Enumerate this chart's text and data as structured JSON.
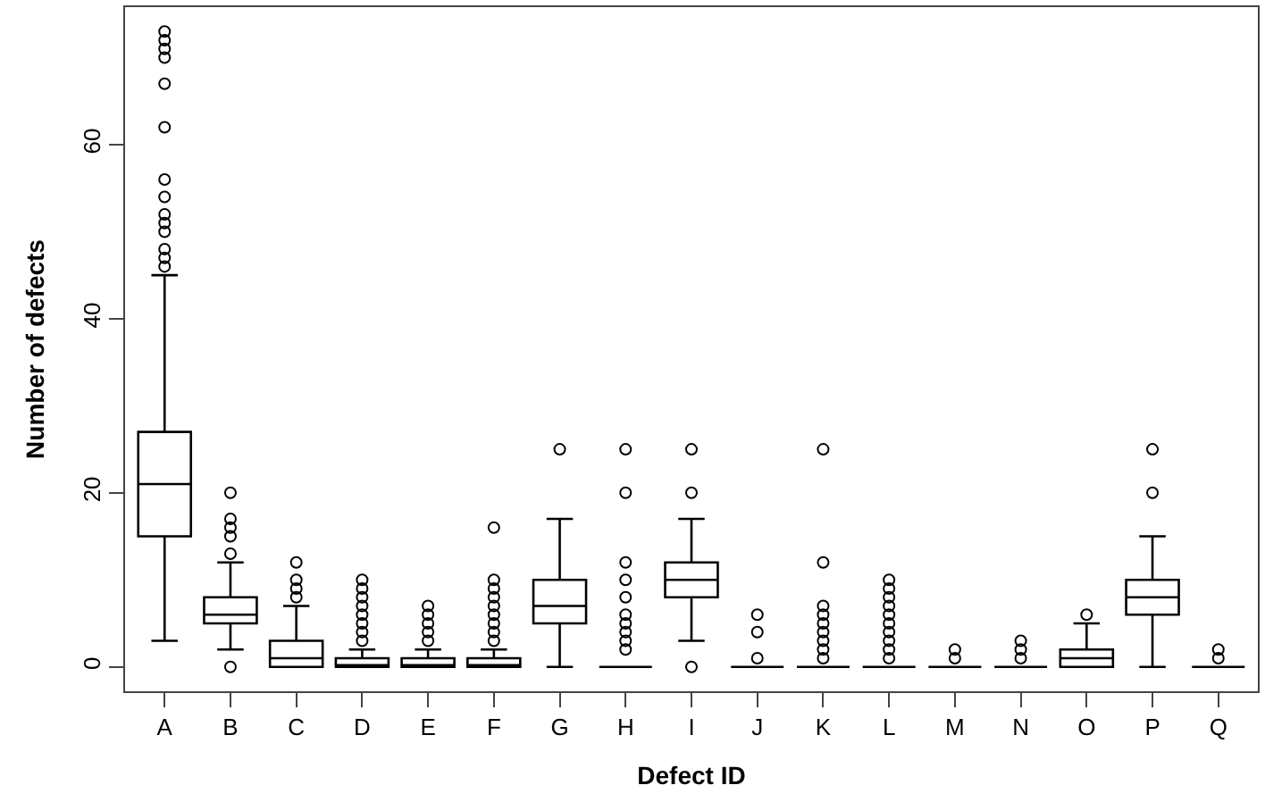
{
  "chart_data": {
    "type": "box",
    "xlabel": "Defect ID",
    "ylabel": "Number of defects",
    "categories": [
      "A",
      "B",
      "C",
      "D",
      "E",
      "F",
      "G",
      "H",
      "I",
      "J",
      "K",
      "L",
      "M",
      "N",
      "O",
      "P",
      "Q"
    ],
    "ylim": [
      -2.8,
      75.8
    ],
    "yticks": [
      0,
      20,
      40,
      60
    ],
    "marker": "circle",
    "boxes": [
      {
        "low": 3,
        "q1": 15,
        "median": 21,
        "q3": 27,
        "high": 45,
        "outliers": [
          46,
          47,
          48,
          50,
          51,
          52,
          54,
          56,
          62,
          67,
          70,
          71,
          72,
          73
        ]
      },
      {
        "low": 2,
        "q1": 5,
        "median": 6,
        "q3": 8,
        "high": 12,
        "outliers": [
          0,
          13,
          15,
          16,
          17,
          20
        ]
      },
      {
        "low": 0,
        "q1": 0,
        "median": 1,
        "q3": 3,
        "high": 7,
        "outliers": [
          8,
          9,
          10,
          12
        ]
      },
      {
        "low": 0,
        "q1": 0,
        "median": 0,
        "q3": 1,
        "high": 2,
        "outliers": [
          3,
          4,
          5,
          6,
          7,
          8,
          9,
          10
        ]
      },
      {
        "low": 0,
        "q1": 0,
        "median": 0,
        "q3": 1,
        "high": 2,
        "outliers": [
          3,
          4,
          5,
          6,
          7
        ]
      },
      {
        "low": 0,
        "q1": 0,
        "median": 0,
        "q3": 1,
        "high": 2,
        "outliers": [
          3,
          4,
          5,
          6,
          7,
          8,
          9,
          10,
          16
        ]
      },
      {
        "low": 0,
        "q1": 5,
        "median": 7,
        "q3": 10,
        "high": 17,
        "outliers": [
          25
        ]
      },
      {
        "low": 0,
        "q1": 0,
        "median": 0,
        "q3": 0,
        "high": 0,
        "outliers": [
          2,
          3,
          4,
          5,
          6,
          8,
          10,
          12,
          20,
          25
        ]
      },
      {
        "low": 3,
        "q1": 8,
        "median": 10,
        "q3": 12,
        "high": 17,
        "outliers": [
          0,
          20,
          25
        ]
      },
      {
        "low": 0,
        "q1": 0,
        "median": 0,
        "q3": 0,
        "high": 0,
        "outliers": [
          1,
          4,
          6
        ]
      },
      {
        "low": 0,
        "q1": 0,
        "median": 0,
        "q3": 0,
        "high": 0,
        "outliers": [
          1,
          2,
          3,
          4,
          5,
          6,
          7,
          12,
          25
        ]
      },
      {
        "low": 0,
        "q1": 0,
        "median": 0,
        "q3": 0,
        "high": 0,
        "outliers": [
          1,
          2,
          3,
          4,
          5,
          6,
          7,
          8,
          9,
          10
        ]
      },
      {
        "low": 0,
        "q1": 0,
        "median": 0,
        "q3": 0,
        "high": 0,
        "outliers": [
          1,
          2
        ]
      },
      {
        "low": 0,
        "q1": 0,
        "median": 0,
        "q3": 0,
        "high": 0,
        "outliers": [
          1,
          2,
          3
        ]
      },
      {
        "low": 0,
        "q1": 0,
        "median": 1,
        "q3": 2,
        "high": 5,
        "outliers": [
          6
        ]
      },
      {
        "low": 0,
        "q1": 6,
        "median": 8,
        "q3": 10,
        "high": 15,
        "outliers": [
          20,
          25
        ]
      },
      {
        "low": 0,
        "q1": 0,
        "median": 0,
        "q3": 0,
        "high": 0,
        "outliers": [
          1,
          2
        ]
      }
    ]
  }
}
